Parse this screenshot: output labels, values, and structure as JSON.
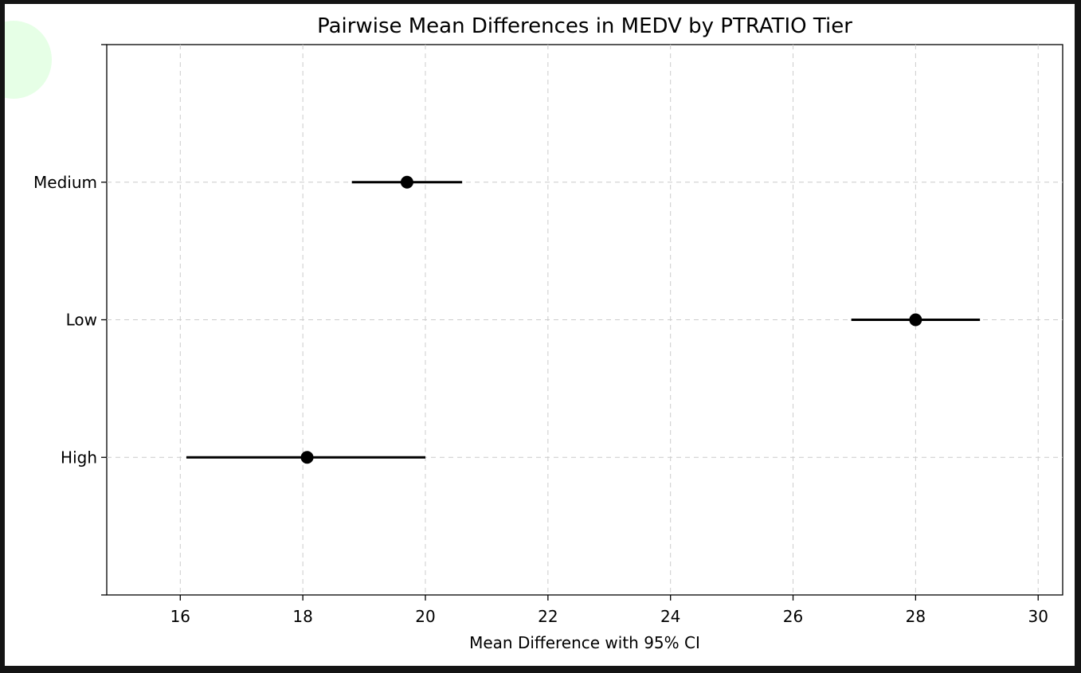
{
  "colors": {
    "frame_bg": "#141414",
    "plot_bg": "#ffffff",
    "grid": "#cccccc",
    "marker": "#000000",
    "cursor_halo": "#e6ffe6"
  },
  "chart_data": {
    "type": "scatter",
    "title": "Pairwise Mean Differences in MEDV by PTRATIO Tier",
    "xlabel": "Mean Difference with 95% CI",
    "ylabel": "",
    "xlim": [
      14.8,
      30.4
    ],
    "x_ticks": [
      16,
      18,
      20,
      22,
      24,
      26,
      28,
      30
    ],
    "x_tick_labels": [
      "16",
      "18",
      "20",
      "22",
      "24",
      "26",
      "28",
      "30"
    ],
    "categories": [
      "Medium",
      "Low",
      "High"
    ],
    "grid": true,
    "series": [
      {
        "points": [
          {
            "category": "Medium",
            "mean": 19.7,
            "ci_low": 18.8,
            "ci_high": 20.6
          },
          {
            "category": "Low",
            "mean": 28.0,
            "ci_low": 26.95,
            "ci_high": 29.05
          },
          {
            "category": "High",
            "mean": 18.07,
            "ci_low": 16.1,
            "ci_high": 20.0
          }
        ]
      }
    ]
  }
}
